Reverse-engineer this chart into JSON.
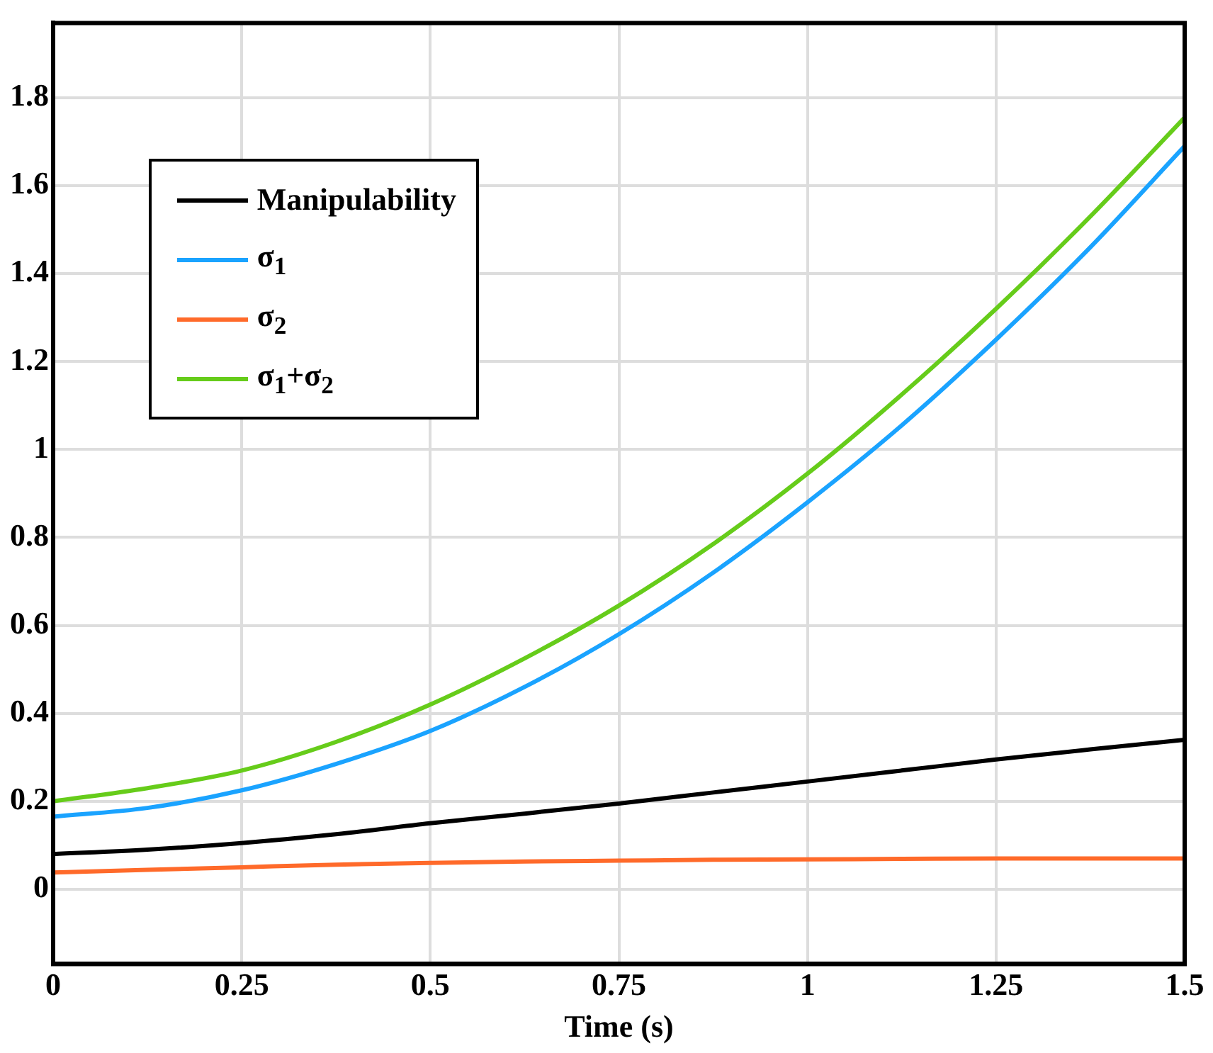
{
  "chart_data": {
    "type": "line",
    "xlabel": "Time (s)",
    "x": [
      0,
      0.125,
      0.25,
      0.375,
      0.5,
      0.625,
      0.75,
      0.875,
      1,
      1.125,
      1.25,
      1.375,
      1.5
    ],
    "xlim": [
      0,
      1.5
    ],
    "xticks": [
      0,
      0.25,
      0.5,
      0.75,
      1,
      1.25,
      1.5
    ],
    "ylim": [
      -0.17,
      1.97
    ],
    "yticks": [
      0,
      0.2,
      0.4,
      0.6,
      0.8,
      1,
      1.2,
      1.4,
      1.6,
      1.8
    ],
    "grid": true,
    "legend": "top left",
    "marker": "none",
    "line_style": "solid",
    "series": [
      {
        "name": "Manipulability",
        "color": "#000000",
        "values": [
          0.08,
          0.09,
          0.105,
          0.125,
          0.15,
          0.172,
          0.195,
          0.22,
          0.245,
          0.27,
          0.295,
          0.318,
          0.34
        ]
      },
      {
        "name": "σ$_{1}$",
        "color": "#1aa3ff",
        "values": [
          0.165,
          0.185,
          0.225,
          0.285,
          0.36,
          0.46,
          0.58,
          0.72,
          0.88,
          1.055,
          1.25,
          1.46,
          1.69
        ]
      },
      {
        "name": "σ$_{2}$",
        "color": "#ff6a2a",
        "values": [
          0.038,
          0.044,
          0.05,
          0.056,
          0.06,
          0.063,
          0.065,
          0.067,
          0.068,
          0.069,
          0.07,
          0.07,
          0.07
        ]
      },
      {
        "name": "σ$_{1}$+σ$_{2}$",
        "color": "#66cc1a",
        "values": [
          0.2,
          0.23,
          0.27,
          0.335,
          0.42,
          0.525,
          0.645,
          0.785,
          0.945,
          1.125,
          1.32,
          1.53,
          1.755
        ]
      }
    ]
  }
}
